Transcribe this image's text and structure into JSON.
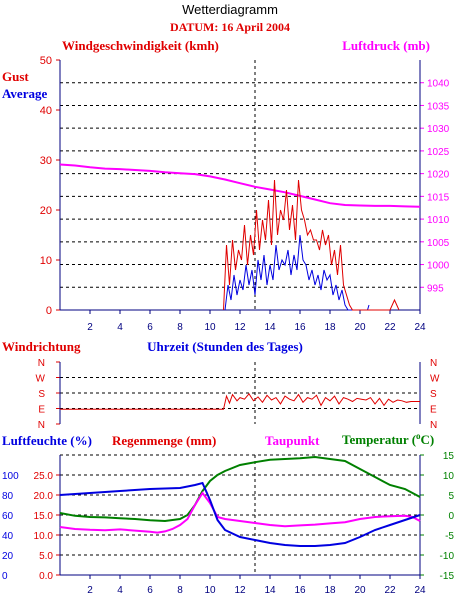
{
  "header": {
    "title": "Wetterdiagramm",
    "date_line": "DATUM: 16 April 2004"
  },
  "colors": {
    "red": "#e00000",
    "blue": "#0000e0",
    "magenta": "#ff00ff",
    "green": "#008000",
    "axis_blue": "#000080",
    "grid": "#000000"
  },
  "chart_data": [
    {
      "type": "line",
      "id": "wind",
      "labels": {
        "left_title": "Windgeschwindigkeit (kmh)",
        "right_title": "Luftdruck (mb)",
        "gust": "Gust",
        "average": "Average"
      },
      "x": {
        "range": [
          0,
          24
        ],
        "ticks": [
          2,
          4,
          6,
          8,
          10,
          12,
          14,
          16,
          18,
          20,
          22,
          24
        ]
      },
      "y_left": {
        "range": [
          0,
          50
        ],
        "ticks": [
          0,
          10,
          20,
          30,
          40,
          50
        ]
      },
      "y_right": {
        "range": [
          990,
          1045
        ],
        "ticks": [
          995,
          1000,
          1005,
          1010,
          1015,
          1020,
          1025,
          1030,
          1035,
          1040
        ]
      },
      "series": [
        {
          "name": "Gust",
          "axis": "left",
          "x": [
            10.9,
            11.1,
            11.3,
            11.5,
            11.7,
            11.9,
            12.1,
            12.3,
            12.5,
            12.7,
            12.9,
            13.1,
            13.3,
            13.5,
            13.7,
            13.9,
            14.1,
            14.3,
            14.5,
            14.7,
            14.9,
            15.1,
            15.3,
            15.5,
            15.7,
            15.9,
            16.1,
            16.3,
            16.5,
            16.7,
            16.9,
            17.1,
            17.3,
            17.5,
            17.7,
            17.9,
            18.1,
            18.3,
            18.5,
            18.7,
            18.9,
            19.1,
            19.3,
            19.5,
            22.0,
            22.3,
            22.6
          ],
          "values": [
            0,
            13,
            5,
            14,
            8,
            12,
            10,
            17,
            9,
            15,
            11,
            20,
            12,
            18,
            14,
            22,
            13,
            26,
            15,
            20,
            18,
            24,
            16,
            21,
            14,
            26,
            20,
            18,
            15,
            16,
            14,
            14,
            12,
            16,
            13,
            15,
            9,
            12,
            7,
            13,
            5,
            3,
            1,
            0,
            0,
            2,
            0
          ]
        },
        {
          "name": "Average",
          "axis": "left",
          "x": [
            11.0,
            11.2,
            11.4,
            11.6,
            11.8,
            12.0,
            12.2,
            12.4,
            12.6,
            12.8,
            13.0,
            13.2,
            13.4,
            13.6,
            13.8,
            14.0,
            14.2,
            14.4,
            14.6,
            14.8,
            15.0,
            15.2,
            15.4,
            15.6,
            15.8,
            16.0,
            16.2,
            16.4,
            16.6,
            16.8,
            17.0,
            17.2,
            17.4,
            17.6,
            17.8,
            18.0,
            18.2,
            18.4,
            18.6,
            18.8,
            19.0,
            19.2,
            19.4,
            20.5,
            20.6
          ],
          "values": [
            0,
            5,
            2,
            7,
            3,
            6,
            4,
            9,
            5,
            8,
            3,
            10,
            6,
            11,
            5,
            9,
            6,
            13,
            8,
            10,
            9,
            12,
            7,
            11,
            8,
            15,
            10,
            9,
            6,
            8,
            5,
            7,
            4,
            8,
            6,
            7,
            3,
            5,
            2,
            4,
            1,
            0,
            0,
            0,
            1
          ]
        },
        {
          "name": "Luftdruck",
          "axis": "right",
          "x": [
            0,
            1,
            2,
            3,
            4,
            5,
            6,
            7,
            8,
            9,
            10,
            11,
            12,
            13,
            14,
            15,
            16,
            17,
            18,
            19,
            20,
            21,
            22,
            23,
            24
          ],
          "values": [
            1022.0,
            1021.8,
            1021.4,
            1021.1,
            1021.0,
            1020.8,
            1020.6,
            1020.3,
            1020.1,
            1019.9,
            1019.4,
            1018.7,
            1017.9,
            1017.1,
            1016.5,
            1015.9,
            1015.1,
            1014.3,
            1013.5,
            1013.1,
            1013.0,
            1012.9,
            1012.9,
            1012.8,
            1012.7
          ]
        }
      ]
    },
    {
      "type": "line",
      "id": "direction",
      "labels": {
        "left_title": "Windrichtung",
        "center_title": "Uhrzeit (Stunden des Tages)"
      },
      "x": {
        "range": [
          0,
          24
        ]
      },
      "y_categories": [
        "N",
        "E",
        "S",
        "W",
        "N"
      ],
      "series": [
        {
          "name": "Windrichtung",
          "x": [
            0,
            10.9,
            11.1,
            11.3,
            11.5,
            11.8,
            12.0,
            12.3,
            12.6,
            12.9,
            13.2,
            13.5,
            13.8,
            14.1,
            14.4,
            14.7,
            15.0,
            15.3,
            15.6,
            15.9,
            16.2,
            16.5,
            16.8,
            17.1,
            17.4,
            17.7,
            18.0,
            18.3,
            18.6,
            18.9,
            19.2,
            19.5,
            19.8,
            20.1,
            20.4,
            20.7,
            21.0,
            21.3,
            21.6,
            21.9,
            22.2,
            22.5,
            22.8,
            23.1,
            23.4,
            23.7,
            24
          ],
          "values": [
            0.95,
            0.95,
            1.8,
            1.35,
            1.9,
            1.5,
            1.7,
            1.6,
            1.95,
            1.5,
            1.75,
            1.4,
            1.85,
            1.55,
            1.7,
            1.3,
            1.8,
            1.6,
            1.5,
            1.9,
            1.4,
            1.7,
            1.6,
            1.85,
            1.2,
            1.7,
            1.5,
            1.8,
            1.3,
            1.7,
            1.6,
            1.45,
            1.65,
            1.6,
            1.55,
            1.7,
            1.3,
            1.65,
            1.2,
            1.6,
            1.4,
            1.55,
            1.5,
            1.4,
            1.45,
            1.45,
            1.45
          ]
        }
      ]
    },
    {
      "type": "line",
      "id": "humidity",
      "labels": {
        "humidity": "Luftfeuchte (%)",
        "rain": "Regenmenge (mm)",
        "dewpoint": "Taupunkt",
        "temperature": "Temperatur (",
        "temperature_unit": "o",
        "temperature_end": "C)"
      },
      "x": {
        "range": [
          0,
          24
        ],
        "ticks": [
          2,
          4,
          6,
          8,
          10,
          12,
          14,
          16,
          18,
          20,
          22,
          24
        ]
      },
      "y_humidity": {
        "range": [
          0,
          120
        ],
        "ticks": [
          0,
          20,
          40,
          60,
          80,
          100
        ]
      },
      "y_rain": {
        "range": [
          0,
          30
        ],
        "tick_labels": [
          "0.0",
          "5.0",
          "10.0",
          "15.0",
          "20.0",
          "25.0"
        ]
      },
      "y_temp": {
        "range": [
          -15,
          15
        ],
        "ticks": [
          -15,
          -10,
          -5,
          0,
          5,
          10,
          15
        ]
      },
      "series": [
        {
          "name": "Temperatur",
          "axis": "temp",
          "x": [
            0,
            1,
            2,
            3,
            4,
            5,
            6,
            7,
            8,
            8.5,
            9,
            9.5,
            10,
            10.5,
            11,
            12,
            13,
            14,
            15,
            16,
            17,
            18,
            19,
            20,
            21,
            22,
            23,
            23.5,
            24
          ],
          "values": [
            0.5,
            -0.2,
            -0.5,
            -0.6,
            -0.8,
            -1.0,
            -1.3,
            -1.5,
            -1.0,
            0.0,
            2.5,
            6.0,
            8.5,
            10.0,
            11.0,
            12.5,
            13.2,
            13.8,
            14.0,
            14.2,
            14.5,
            14.0,
            13.5,
            11.5,
            9.5,
            7.5,
            6.5,
            5.5,
            4.5
          ]
        },
        {
          "name": "Luftfeuchte",
          "axis": "humidity",
          "x": [
            0,
            2,
            4,
            6,
            8,
            9,
            9.5,
            10,
            10.5,
            11,
            12,
            13,
            14,
            15,
            16,
            17,
            18,
            19,
            20,
            21,
            22,
            23,
            24
          ],
          "values": [
            80,
            82,
            84,
            86,
            87,
            90,
            92,
            75,
            55,
            45,
            38,
            35,
            32,
            30,
            29,
            29,
            30,
            32,
            38,
            45,
            50,
            55,
            60
          ]
        },
        {
          "name": "Taupunkt",
          "axis": "temp",
          "x": [
            0,
            1,
            2,
            3,
            4,
            5,
            6,
            6.5,
            7,
            7.5,
            8,
            8.5,
            9,
            9.5,
            10,
            10.5,
            11,
            12,
            13,
            14,
            15,
            16,
            17,
            18,
            19,
            20,
            21,
            22,
            23,
            23.5,
            24
          ],
          "values": [
            -3.0,
            -3.5,
            -3.7,
            -3.8,
            -3.6,
            -3.9,
            -4.2,
            -4.4,
            -4.1,
            -3.5,
            -2.5,
            -1.0,
            2.5,
            5.5,
            3.0,
            -0.5,
            -1.0,
            -1.5,
            -2.0,
            -2.5,
            -2.8,
            -2.6,
            -2.4,
            -2.1,
            -1.8,
            -1.0,
            -0.5,
            -0.3,
            -0.2,
            -0.5,
            -1.5
          ]
        }
      ]
    }
  ]
}
